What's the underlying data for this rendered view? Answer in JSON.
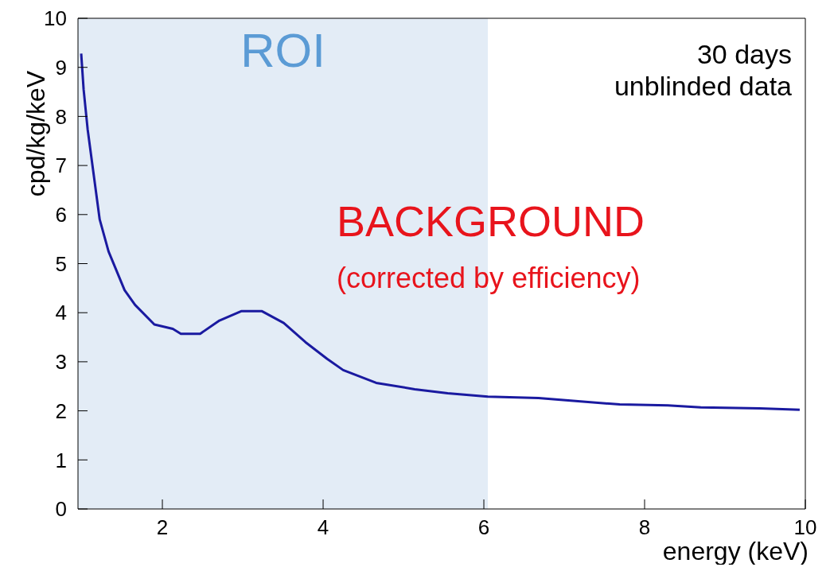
{
  "chart_data": {
    "type": "line",
    "xlabel": "energy (keV)",
    "ylabel": "cpd/kg/keV",
    "x": [
      0.99,
      1.02,
      1.07,
      1.14,
      1.22,
      1.33,
      1.53,
      1.66,
      1.9,
      2.13,
      2.23,
      2.47,
      2.71,
      2.98,
      3.24,
      3.51,
      3.78,
      4.05,
      4.25,
      4.66,
      5.14,
      5.55,
      6.05,
      6.68,
      7.08,
      7.69,
      8.29,
      8.7,
      9.43,
      9.93
    ],
    "series": [
      {
        "color": "#1a1aa0",
        "values": [
          9.28,
          8.55,
          7.74,
          6.88,
          5.9,
          5.25,
          4.46,
          4.16,
          3.76,
          3.67,
          3.57,
          3.57,
          3.84,
          4.03,
          4.03,
          3.79,
          3.4,
          3.06,
          2.83,
          2.57,
          2.44,
          2.36,
          2.29,
          2.26,
          2.21,
          2.13,
          2.11,
          2.07,
          2.05,
          2.02
        ]
      }
    ],
    "xlim": [
      0.95,
      10
    ],
    "xticks": [
      2,
      4,
      6,
      8,
      10
    ],
    "ylim": [
      0,
      10
    ],
    "yticks": [
      0,
      1,
      2,
      3,
      4,
      5,
      6,
      7,
      8,
      9,
      10
    ],
    "bands": [
      {
        "axis": "x",
        "from": 0.95,
        "to": 6.05,
        "label": "ROI",
        "color": "#e3ecf6"
      }
    ],
    "annotations": [
      "30 days\nunblinded data",
      "BACKGROUND",
      "(corrected by efficiency)"
    ],
    "grid": false,
    "legend": false,
    "marker": "none",
    "line_style": "solid"
  }
}
